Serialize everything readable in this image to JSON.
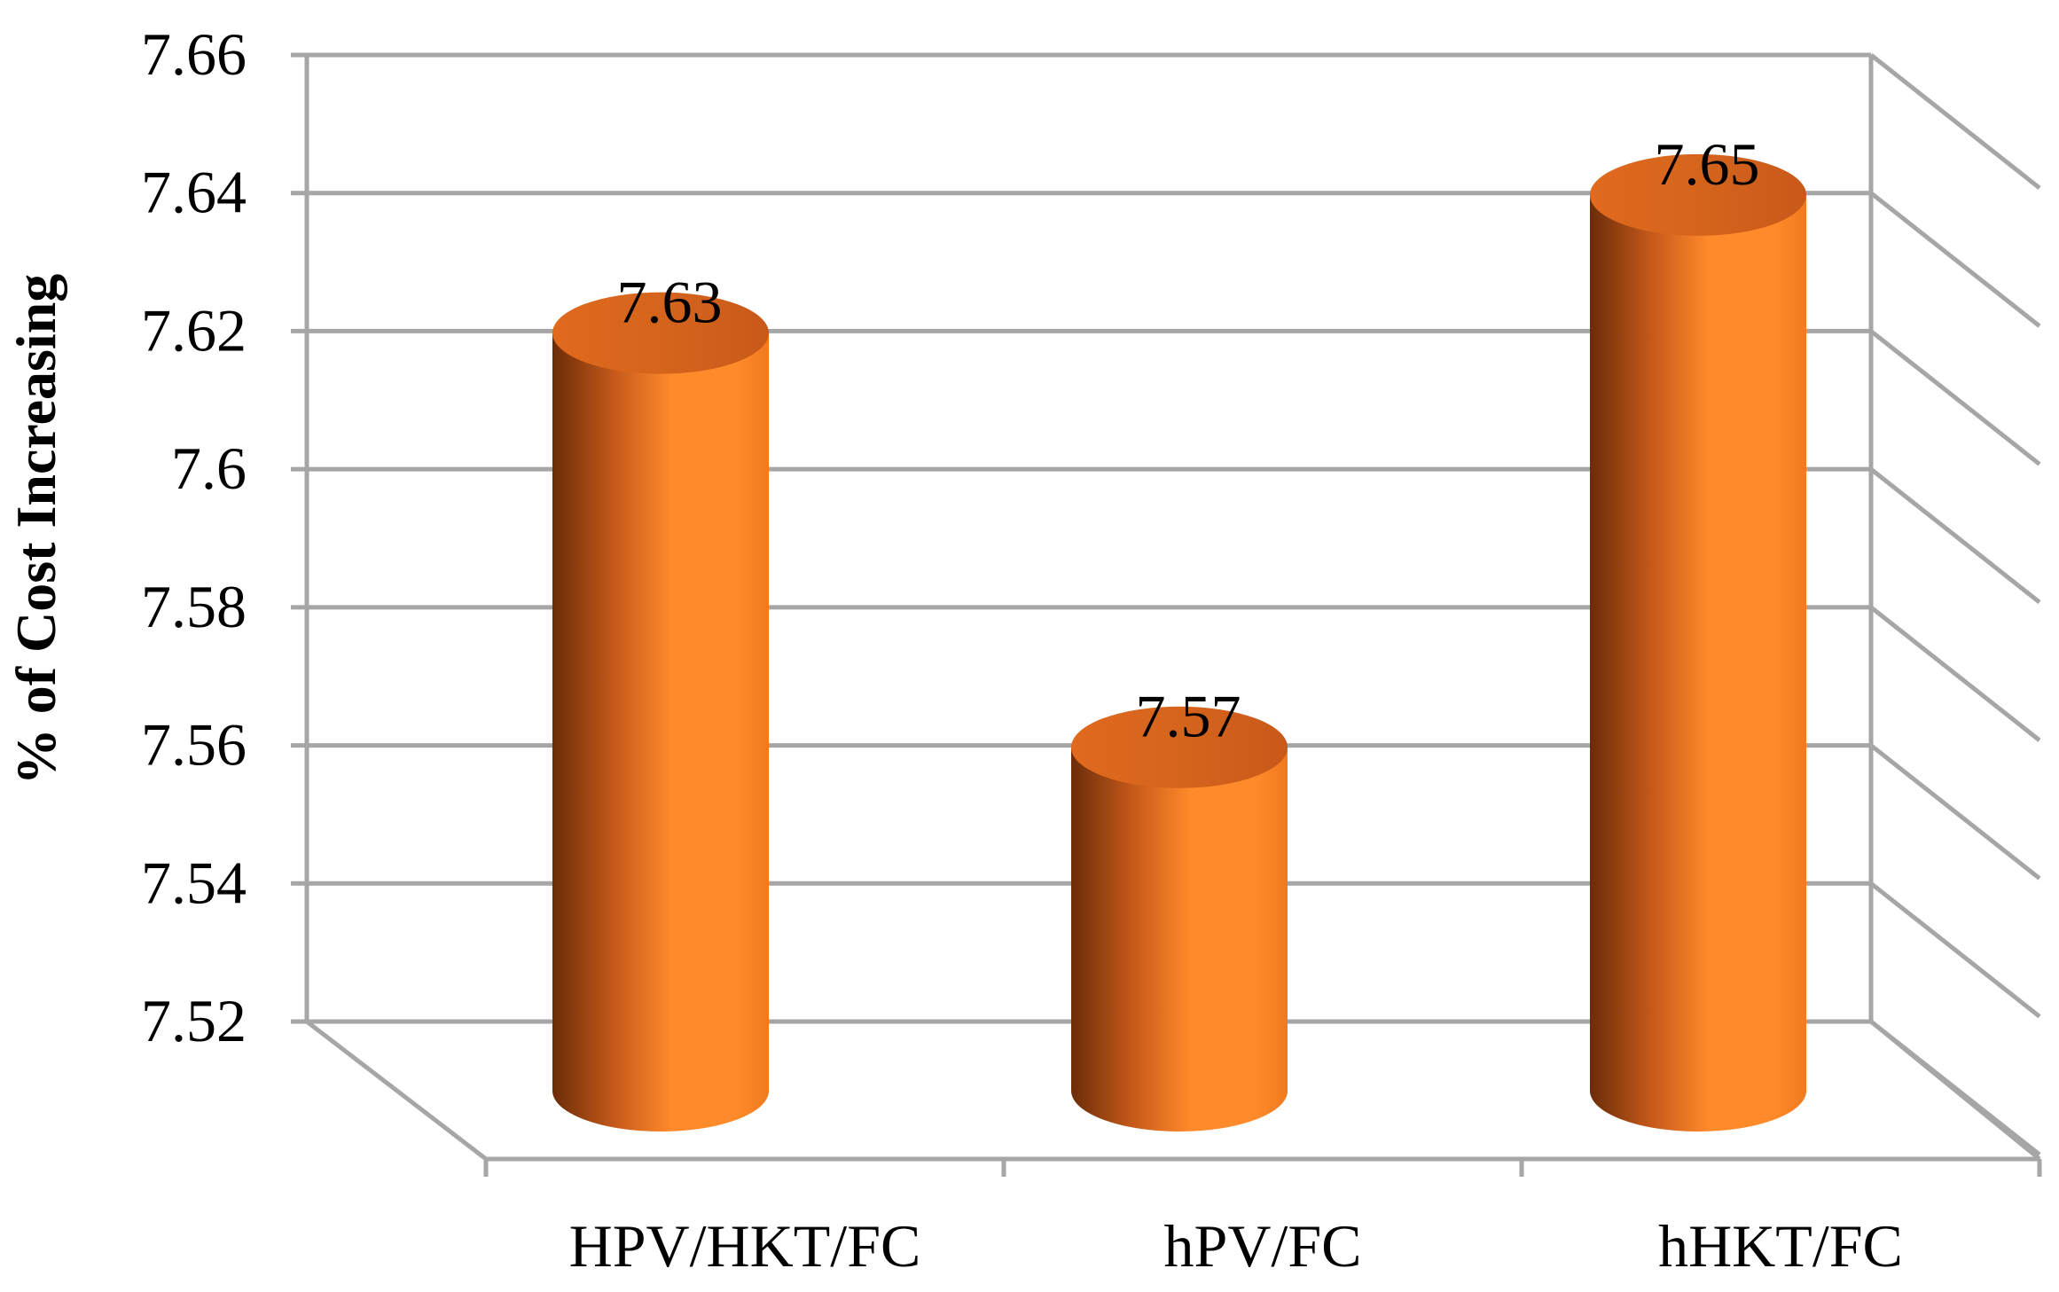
{
  "chart_data": {
    "type": "bar",
    "style": "3d-cylinder",
    "title": "",
    "xlabel": "",
    "ylabel": "% of Cost Increasing",
    "categories": [
      "HPV/HKT/FC",
      "hPV/FC",
      "hHKT/FC"
    ],
    "values": [
      7.63,
      7.57,
      7.65
    ],
    "data_labels": [
      "7.63",
      "7.57",
      "7.65"
    ],
    "ylim": [
      7.52,
      7.66
    ],
    "yticks": [
      "7.66",
      "7.64",
      "7.62",
      "7.6",
      "7.58",
      "7.56",
      "7.54",
      "7.52"
    ],
    "grid": true,
    "legend": "none",
    "colors": {
      "bar_light": "#ff8a2a",
      "bar_mid": "#f07a1e",
      "bar_dark": "#6b2c08",
      "bar_top": "#d5641c",
      "grid": "#a6a6a6"
    }
  }
}
